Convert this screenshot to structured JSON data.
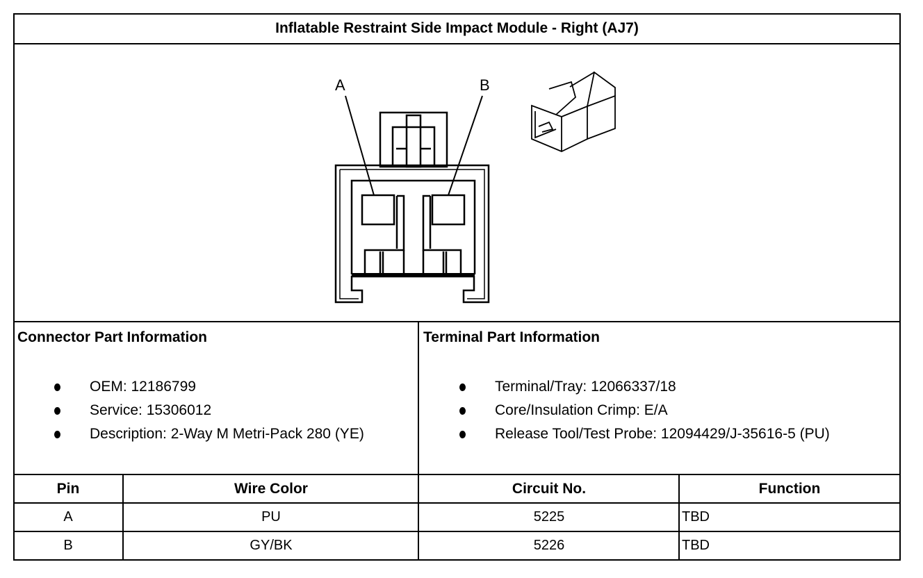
{
  "title": "Inflatable Restraint Side Impact Module - Right (AJ7)",
  "diagram": {
    "pin_labels": [
      "A",
      "B"
    ]
  },
  "connector_info": {
    "heading": "Connector Part Information",
    "items": [
      "OEM: 12186799",
      "Service: 15306012",
      "Description: 2-Way M Metri-Pack 280 (YE)"
    ]
  },
  "terminal_info": {
    "heading": "Terminal Part Information",
    "items": [
      "Terminal/Tray: 12066337/18",
      "Core/Insulation Crimp: E/A",
      "Release Tool/Test Probe: 12094429/J-35616-5 (PU)"
    ]
  },
  "pin_table": {
    "headers": [
      "Pin",
      "Wire Color",
      "Circuit No.",
      "Function"
    ],
    "rows": [
      [
        "A",
        "PU",
        "5225",
        "TBD"
      ],
      [
        "B",
        "GY/BK",
        "5226",
        "TBD"
      ]
    ]
  }
}
